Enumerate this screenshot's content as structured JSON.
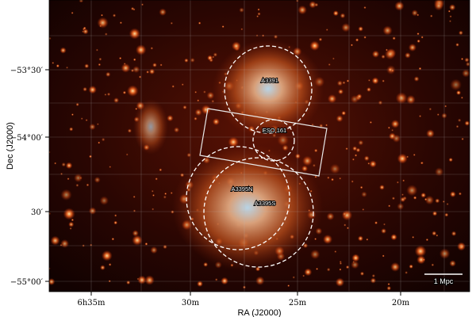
{
  "figure": {
    "x_axis": {
      "label": "RA (J2000)",
      "ticks": [
        "6h35m",
        "30m",
        "25m",
        "20m"
      ]
    },
    "y_axis": {
      "label": "Dec (J2000)",
      "ticks": [
        "−53°30′",
        "−54°00′",
        "30′",
        "−55°00′"
      ]
    },
    "regions": [
      {
        "name": "A3391"
      },
      {
        "name": "ESO 161"
      },
      {
        "name": "A3395N"
      },
      {
        "name": "A3395S"
      }
    ],
    "scale_bar": {
      "label": "1 Mpc"
    },
    "colormap": [
      "#000000",
      "#5a0a00",
      "#b33a10",
      "#f0a060",
      "#c8e0f0"
    ]
  }
}
